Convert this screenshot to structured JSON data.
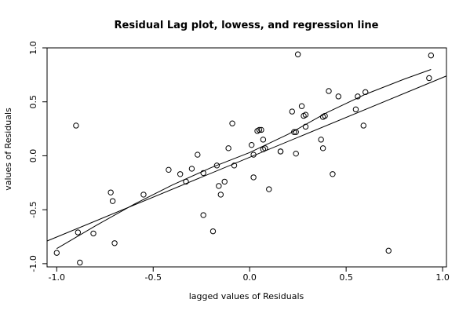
{
  "chart_data": {
    "type": "scatter",
    "title": "Residual Lag plot, lowess, and regression line",
    "xlabel": "lagged values of Residuals",
    "ylabel": "values of Residuals",
    "xlim": [
      -1.05,
      1.02
    ],
    "ylim": [
      -1.03,
      1.0
    ],
    "xticks": [
      -1.0,
      -0.5,
      0.0,
      0.5,
      1.0
    ],
    "xtick_labels": [
      "-1.0",
      "-0.5",
      "0.0",
      "0.5",
      "1.0"
    ],
    "yticks": [
      -1.0,
      -0.5,
      0.0,
      0.5,
      1.0
    ],
    "ytick_labels": [
      "-1.0",
      "-0.5",
      "0.0",
      "0.5",
      "1.0"
    ],
    "grid": false,
    "points": [
      {
        "x": -1.0,
        "y": -0.9
      },
      {
        "x": -0.9,
        "y": 0.28
      },
      {
        "x": -0.89,
        "y": -0.71
      },
      {
        "x": -0.88,
        "y": -0.99
      },
      {
        "x": -0.81,
        "y": -0.72
      },
      {
        "x": -0.72,
        "y": -0.34
      },
      {
        "x": -0.71,
        "y": -0.42
      },
      {
        "x": -0.7,
        "y": -0.81
      },
      {
        "x": -0.55,
        "y": -0.36
      },
      {
        "x": -0.42,
        "y": -0.13
      },
      {
        "x": -0.36,
        "y": -0.17
      },
      {
        "x": -0.33,
        "y": -0.24
      },
      {
        "x": -0.3,
        "y": -0.12
      },
      {
        "x": -0.27,
        "y": 0.01
      },
      {
        "x": -0.24,
        "y": -0.16
      },
      {
        "x": -0.24,
        "y": -0.55
      },
      {
        "x": -0.19,
        "y": -0.7
      },
      {
        "x": -0.17,
        "y": -0.09
      },
      {
        "x": -0.16,
        "y": -0.28
      },
      {
        "x": -0.15,
        "y": -0.36
      },
      {
        "x": -0.13,
        "y": -0.24
      },
      {
        "x": -0.11,
        "y": 0.07
      },
      {
        "x": -0.09,
        "y": 0.3
      },
      {
        "x": -0.08,
        "y": -0.09
      },
      {
        "x": 0.01,
        "y": 0.1
      },
      {
        "x": 0.02,
        "y": -0.2
      },
      {
        "x": 0.02,
        "y": 0.01
      },
      {
        "x": 0.04,
        "y": 0.23
      },
      {
        "x": 0.05,
        "y": 0.24
      },
      {
        "x": 0.06,
        "y": 0.24
      },
      {
        "x": 0.07,
        "y": 0.15
      },
      {
        "x": 0.07,
        "y": 0.06
      },
      {
        "x": 0.08,
        "y": 0.07
      },
      {
        "x": 0.1,
        "y": -0.31
      },
      {
        "x": 0.16,
        "y": 0.04
      },
      {
        "x": 0.16,
        "y": 0.04
      },
      {
        "x": 0.22,
        "y": 0.41
      },
      {
        "x": 0.23,
        "y": 0.22
      },
      {
        "x": 0.24,
        "y": 0.22
      },
      {
        "x": 0.24,
        "y": 0.02
      },
      {
        "x": 0.25,
        "y": 0.94
      },
      {
        "x": 0.27,
        "y": 0.46
      },
      {
        "x": 0.28,
        "y": 0.37
      },
      {
        "x": 0.29,
        "y": 0.38
      },
      {
        "x": 0.29,
        "y": 0.27
      },
      {
        "x": 0.37,
        "y": 0.15
      },
      {
        "x": 0.38,
        "y": 0.36
      },
      {
        "x": 0.38,
        "y": 0.07
      },
      {
        "x": 0.39,
        "y": 0.37
      },
      {
        "x": 0.41,
        "y": 0.6
      },
      {
        "x": 0.43,
        "y": -0.17
      },
      {
        "x": 0.46,
        "y": 0.55
      },
      {
        "x": 0.55,
        "y": 0.43
      },
      {
        "x": 0.56,
        "y": 0.55
      },
      {
        "x": 0.59,
        "y": 0.28
      },
      {
        "x": 0.6,
        "y": 0.59
      },
      {
        "x": 0.72,
        "y": -0.88
      },
      {
        "x": 0.93,
        "y": 0.72
      },
      {
        "x": 0.94,
        "y": 0.93
      }
    ],
    "regression_line": {
      "x1": -1.05,
      "y1": -0.79,
      "x2": 1.02,
      "y2": 0.74
    },
    "lowess": [
      {
        "x": -1.0,
        "y": -0.86
      },
      {
        "x": -0.8,
        "y": -0.65
      },
      {
        "x": -0.6,
        "y": -0.45
      },
      {
        "x": -0.4,
        "y": -0.27
      },
      {
        "x": -0.2,
        "y": -0.11
      },
      {
        "x": 0.0,
        "y": 0.03
      },
      {
        "x": 0.2,
        "y": 0.2
      },
      {
        "x": 0.4,
        "y": 0.4
      },
      {
        "x": 0.6,
        "y": 0.57
      },
      {
        "x": 0.8,
        "y": 0.71
      },
      {
        "x": 0.94,
        "y": 0.8
      }
    ]
  }
}
